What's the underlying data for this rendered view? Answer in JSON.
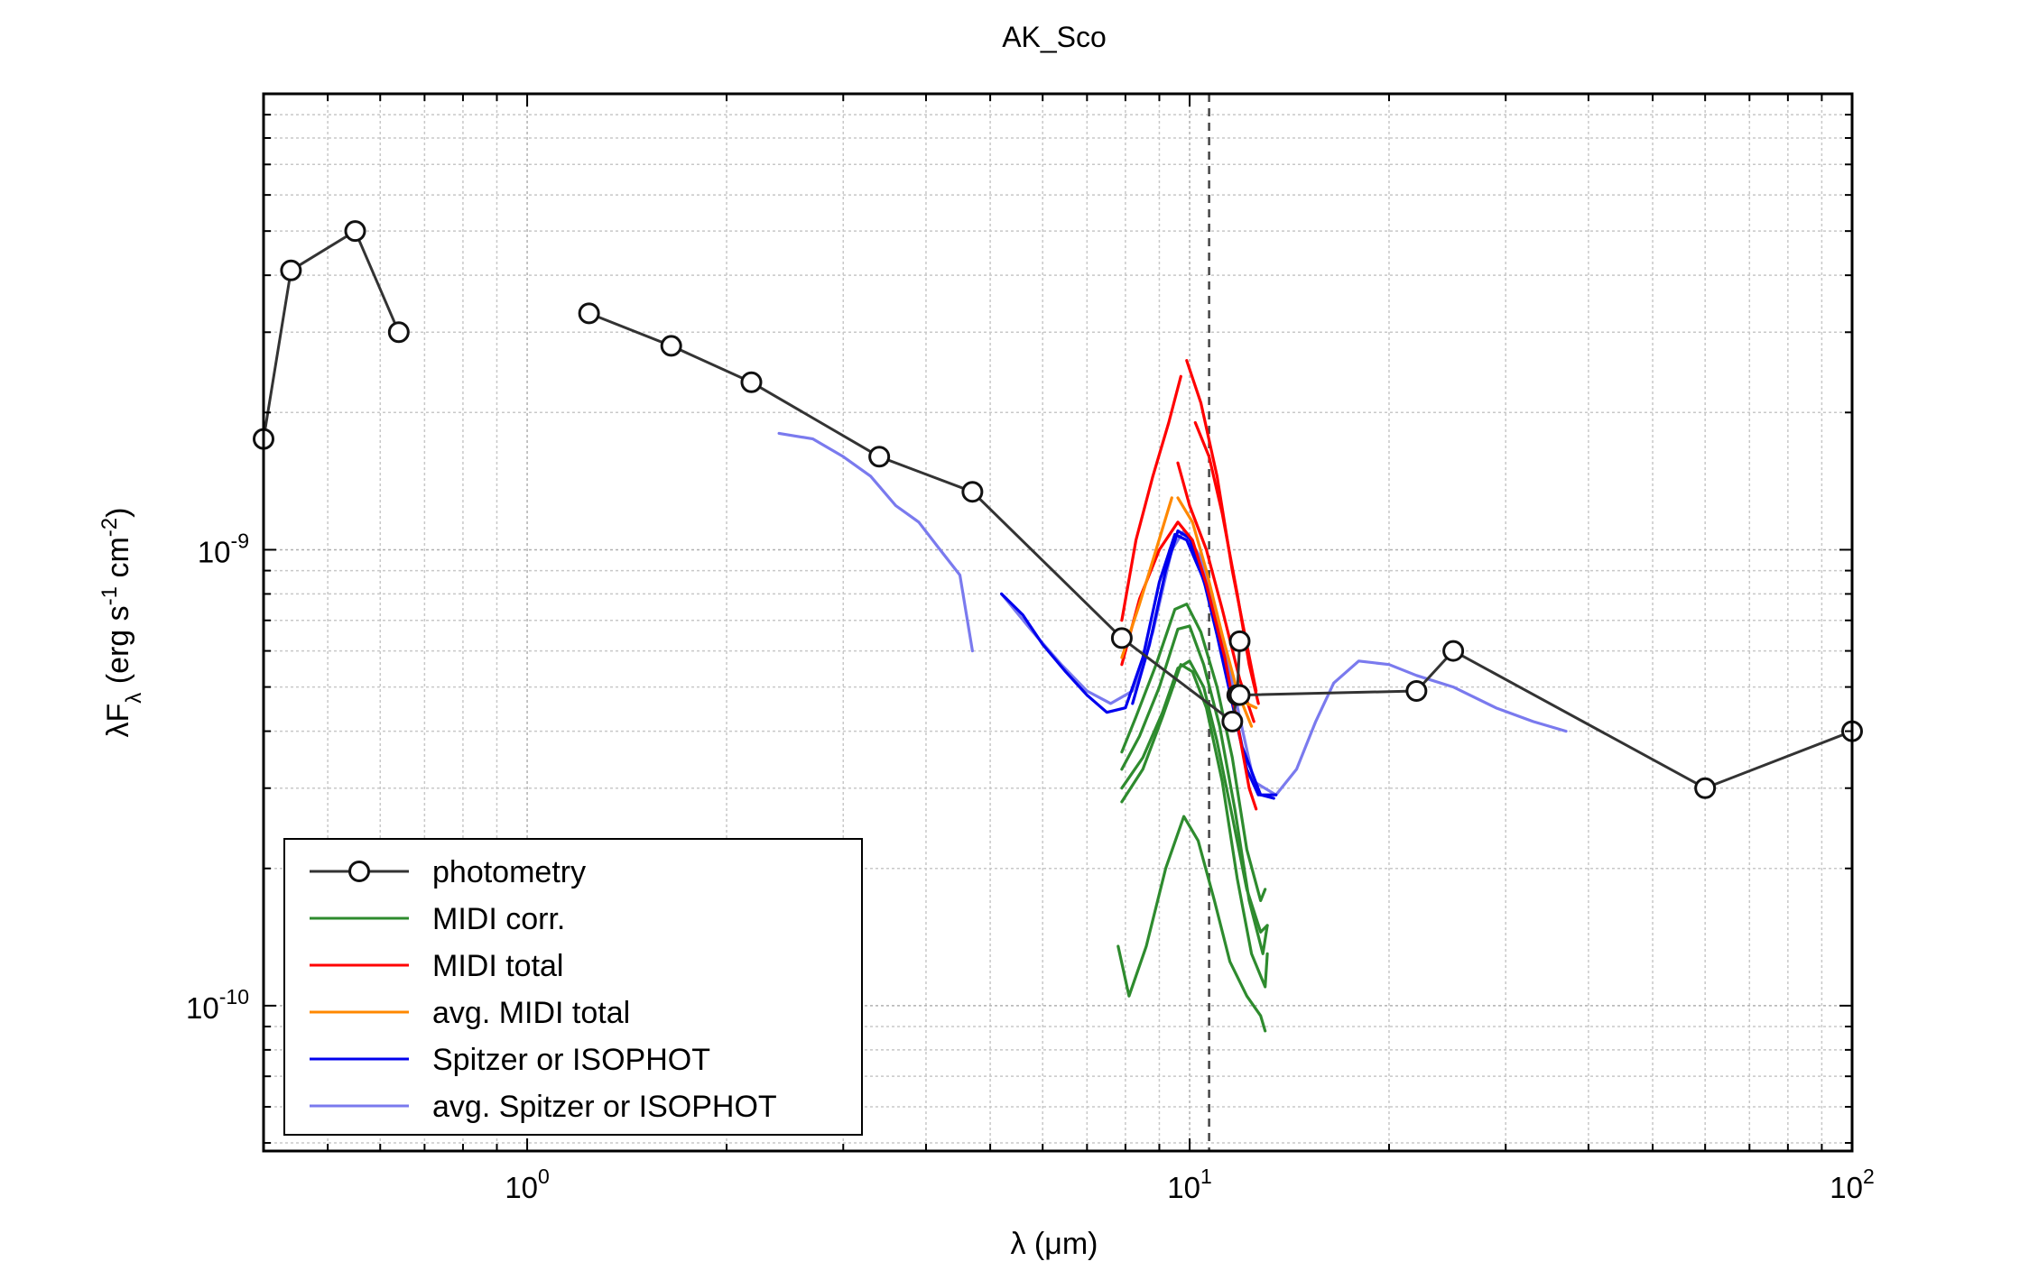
{
  "chart_data": {
    "type": "line",
    "title": "AK_Sco",
    "xlabel": "λ (μm)",
    "ylabel": "λF_λ (erg s^-1 cm^-2)",
    "x_scale": "log",
    "y_scale": "log",
    "xlim": [
      0.4,
      100
    ],
    "ylim": [
      4.8e-11,
      1e-08
    ],
    "grid": true,
    "legend_position": "bottom-left",
    "x_ticks": [
      {
        "base": "10",
        "exp": "0",
        "value": 1
      },
      {
        "base": "10",
        "exp": "1",
        "value": 10
      },
      {
        "base": "10",
        "exp": "2",
        "value": 100
      }
    ],
    "y_ticks": [
      {
        "base": "10",
        "exp": "-10",
        "value": 1e-10
      },
      {
        "base": "10",
        "exp": "-9",
        "value": 1e-09
      }
    ],
    "vertical_marker_x": 10.7,
    "colors": {
      "photometry": "#333333",
      "midi_corr": "#2e8b2e",
      "midi_total": "#ff0000",
      "avg_midi_total": "#ff8800",
      "spitzer": "#0000ee",
      "avg_spitzer": "#7a7aee"
    },
    "legend": [
      {
        "label": "photometry",
        "key": "photometry",
        "marker": "circle"
      },
      {
        "label": "MIDI corr.",
        "key": "midi_corr",
        "marker": "none"
      },
      {
        "label": "MIDI total",
        "key": "midi_total",
        "marker": "none"
      },
      {
        "label": "avg. MIDI total",
        "key": "avg_midi_total",
        "marker": "none"
      },
      {
        "label": "Spitzer or ISOPHOT",
        "key": "spitzer",
        "marker": "none"
      },
      {
        "label": "avg. Spitzer or ISOPHOT",
        "key": "avg_spitzer",
        "marker": "none"
      }
    ],
    "series": [
      {
        "key": "photometry",
        "marker": "circle",
        "segments": [
          [
            [
              0.4,
              1.75e-09
            ],
            [
              0.44,
              4.1e-09
            ],
            [
              0.55,
              5e-09
            ],
            [
              0.64,
              3e-09
            ]
          ],
          [
            [
              1.24,
              3.3e-09
            ],
            [
              1.65,
              2.8e-09
            ],
            [
              2.18,
              2.33e-09
            ],
            [
              3.4,
              1.6e-09
            ],
            [
              4.7,
              1.34e-09
            ],
            [
              7.9,
              6.4e-10
            ],
            [
              11.6,
              4.2e-10
            ],
            [
              11.8,
              4.8e-10
            ],
            [
              11.9,
              6.3e-10
            ]
          ],
          [
            [
              11.9,
              4.8e-10
            ],
            [
              22.0,
              4.9e-10
            ],
            [
              25.0,
              6e-10
            ],
            [
              60.0,
              3e-10
            ],
            [
              100.0,
              4e-10
            ]
          ]
        ]
      },
      {
        "key": "midi_corr",
        "marker": "none",
        "segments": [
          [
            [
              7.9,
              3.6e-10
            ],
            [
              8.3,
              4.3e-10
            ],
            [
              8.9,
              5.6e-10
            ],
            [
              9.5,
              7.4e-10
            ],
            [
              9.9,
              7.6e-10
            ],
            [
              10.4,
              6.6e-10
            ],
            [
              11.0,
              5e-10
            ],
            [
              11.6,
              3.5e-10
            ],
            [
              12.2,
              2.2e-10
            ],
            [
              12.8,
              1.7e-10
            ],
            [
              13.0,
              1.8e-10
            ]
          ],
          [
            [
              7.9,
              3.3e-10
            ],
            [
              8.4,
              3.9e-10
            ],
            [
              9.0,
              5e-10
            ],
            [
              9.6,
              6.7e-10
            ],
            [
              10.0,
              6.8e-10
            ],
            [
              10.5,
              5.6e-10
            ],
            [
              11.1,
              4.1e-10
            ],
            [
              11.7,
              2.7e-10
            ],
            [
              12.3,
              1.7e-10
            ],
            [
              12.9,
              1.3e-10
            ],
            [
              13.1,
              1.5e-10
            ]
          ],
          [
            [
              7.9,
              3e-10
            ],
            [
              8.5,
              3.5e-10
            ],
            [
              9.1,
              4.4e-10
            ],
            [
              9.6,
              5.5e-10
            ],
            [
              10.0,
              5.7e-10
            ],
            [
              10.5,
              5e-10
            ],
            [
              11.0,
              3.8e-10
            ],
            [
              11.6,
              2.6e-10
            ],
            [
              12.2,
              1.8e-10
            ],
            [
              12.8,
              1.45e-10
            ],
            [
              13.1,
              1.5e-10
            ]
          ],
          [
            [
              7.9,
              2.8e-10
            ],
            [
              8.5,
              3.3e-10
            ],
            [
              9.1,
              4.3e-10
            ],
            [
              9.7,
              5.6e-10
            ],
            [
              10.1,
              5.4e-10
            ],
            [
              10.6,
              4.5e-10
            ],
            [
              11.2,
              3.1e-10
            ],
            [
              11.8,
              1.9e-10
            ],
            [
              12.4,
              1.3e-10
            ],
            [
              13.0,
              1.1e-10
            ],
            [
              13.1,
              1.3e-10
            ]
          ],
          [
            [
              7.8,
              1.35e-10
            ],
            [
              8.1,
              1.05e-10
            ],
            [
              8.6,
              1.35e-10
            ],
            [
              9.2,
              2e-10
            ],
            [
              9.8,
              2.6e-10
            ],
            [
              10.3,
              2.3e-10
            ],
            [
              10.9,
              1.7e-10
            ],
            [
              11.5,
              1.25e-10
            ],
            [
              12.2,
              1.05e-10
            ],
            [
              12.8,
              9.5e-11
            ],
            [
              13.0,
              8.8e-11
            ]
          ]
        ]
      },
      {
        "key": "midi_total",
        "marker": "none",
        "segments": [
          [
            [
              7.9,
              7e-10
            ],
            [
              8.3,
              1.05e-09
            ],
            [
              8.8,
              1.45e-09
            ],
            [
              9.3,
              1.9e-09
            ],
            [
              9.7,
              2.4e-09
            ]
          ],
          [
            [
              7.9,
              5.6e-10
            ],
            [
              8.4,
              7.8e-10
            ],
            [
              9.0,
              1e-09
            ],
            [
              9.6,
              1.15e-09
            ],
            [
              10.1,
              1.05e-09
            ],
            [
              10.6,
              8.4e-10
            ],
            [
              11.3,
              5.8e-10
            ],
            [
              11.9,
              3.9e-10
            ],
            [
              12.3,
              3e-10
            ],
            [
              12.6,
              2.7e-10
            ]
          ],
          [
            [
              9.9,
              2.6e-09
            ],
            [
              10.4,
              2.1e-09
            ],
            [
              11.0,
              1.45e-09
            ],
            [
              11.6,
              9e-10
            ],
            [
              12.2,
              6.2e-10
            ],
            [
              12.6,
              4.9e-10
            ]
          ],
          [
            [
              10.2,
              1.9e-09
            ],
            [
              10.7,
              1.6e-09
            ],
            [
              11.2,
              1.2e-09
            ],
            [
              11.8,
              8e-10
            ],
            [
              12.3,
              5.6e-10
            ],
            [
              12.7,
              4.6e-10
            ]
          ],
          [
            [
              9.6,
              1.55e-09
            ],
            [
              10.0,
              1.25e-09
            ],
            [
              10.6,
              1e-09
            ],
            [
              11.2,
              7.4e-10
            ],
            [
              11.9,
              5.2e-10
            ],
            [
              12.5,
              4.2e-10
            ]
          ]
        ]
      },
      {
        "key": "avg_midi_total",
        "marker": "none",
        "segments": [
          [
            [
              7.9,
              5.8e-10
            ],
            [
              8.4,
              7.6e-10
            ],
            [
              8.9,
              1e-09
            ],
            [
              9.4,
              1.3e-09
            ]
          ],
          [
            [
              9.6,
              1.3e-09
            ],
            [
              10.1,
              1.15e-09
            ],
            [
              10.6,
              9e-10
            ],
            [
              11.2,
              6.5e-10
            ],
            [
              11.8,
              4.9e-10
            ],
            [
              12.4,
              4.1e-10
            ]
          ],
          [
            [
              11.8,
              4.7e-10
            ],
            [
              12.2,
              4.6e-10
            ],
            [
              12.6,
              4.5e-10
            ]
          ]
        ]
      },
      {
        "key": "spitzer",
        "marker": "none",
        "segments": [
          [
            [
              5.2,
              8e-10
            ],
            [
              5.6,
              7.2e-10
            ],
            [
              6.0,
              6.2e-10
            ],
            [
              6.5,
              5.4e-10
            ],
            [
              7.0,
              4.8e-10
            ],
            [
              7.5,
              4.4e-10
            ],
            [
              8.0,
              4.5e-10
            ],
            [
              8.5,
              5.8e-10
            ],
            [
              9.0,
              8.5e-10
            ],
            [
              9.5,
              1.08e-09
            ],
            [
              9.9,
              1.05e-09
            ],
            [
              10.5,
              8.6e-10
            ],
            [
              11.0,
              6.5e-10
            ],
            [
              11.6,
              4.6e-10
            ],
            [
              12.2,
              3.3e-10
            ],
            [
              12.7,
              2.9e-10
            ],
            [
              13.5,
              2.9e-10
            ]
          ],
          [
            [
              8.2,
              4.6e-10
            ],
            [
              8.7,
              6.2e-10
            ],
            [
              9.2,
              9e-10
            ],
            [
              9.6,
              1.1e-09
            ],
            [
              10.0,
              1.06e-09
            ],
            [
              10.6,
              8.2e-10
            ],
            [
              11.3,
              5.7e-10
            ],
            [
              12.0,
              3.7e-10
            ],
            [
              12.8,
              2.9e-10
            ],
            [
              13.4,
              2.85e-10
            ]
          ]
        ]
      },
      {
        "key": "avg_spitzer",
        "marker": "none",
        "segments": [
          [
            [
              2.4,
              1.8e-09
            ],
            [
              2.7,
              1.75e-09
            ],
            [
              3.0,
              1.6e-09
            ],
            [
              3.3,
              1.45e-09
            ],
            [
              3.6,
              1.25e-09
            ],
            [
              3.9,
              1.15e-09
            ],
            [
              4.2,
              1e-09
            ],
            [
              4.5,
              8.8e-10
            ],
            [
              4.7,
              6e-10
            ]
          ],
          [
            [
              5.2,
              8e-10
            ],
            [
              5.8,
              6.6e-10
            ],
            [
              6.4,
              5.6e-10
            ],
            [
              7.0,
              4.9e-10
            ],
            [
              7.6,
              4.6e-10
            ],
            [
              8.2,
              4.9e-10
            ],
            [
              8.8,
              6.6e-10
            ],
            [
              9.4,
              1e-09
            ],
            [
              9.8,
              1.1e-09
            ],
            [
              10.4,
              9.6e-10
            ],
            [
              11.0,
              7.2e-10
            ],
            [
              11.7,
              4.8e-10
            ],
            [
              12.5,
              3.1e-10
            ],
            [
              13.5,
              2.9e-10
            ],
            [
              14.5,
              3.3e-10
            ],
            [
              15.5,
              4.2e-10
            ],
            [
              16.5,
              5.1e-10
            ],
            [
              18.0,
              5.7e-10
            ],
            [
              20.0,
              5.6e-10
            ],
            [
              22.0,
              5.3e-10
            ],
            [
              25.0,
              5e-10
            ],
            [
              29.0,
              4.5e-10
            ],
            [
              33.0,
              4.2e-10
            ],
            [
              37.0,
              4e-10
            ]
          ]
        ]
      }
    ]
  }
}
